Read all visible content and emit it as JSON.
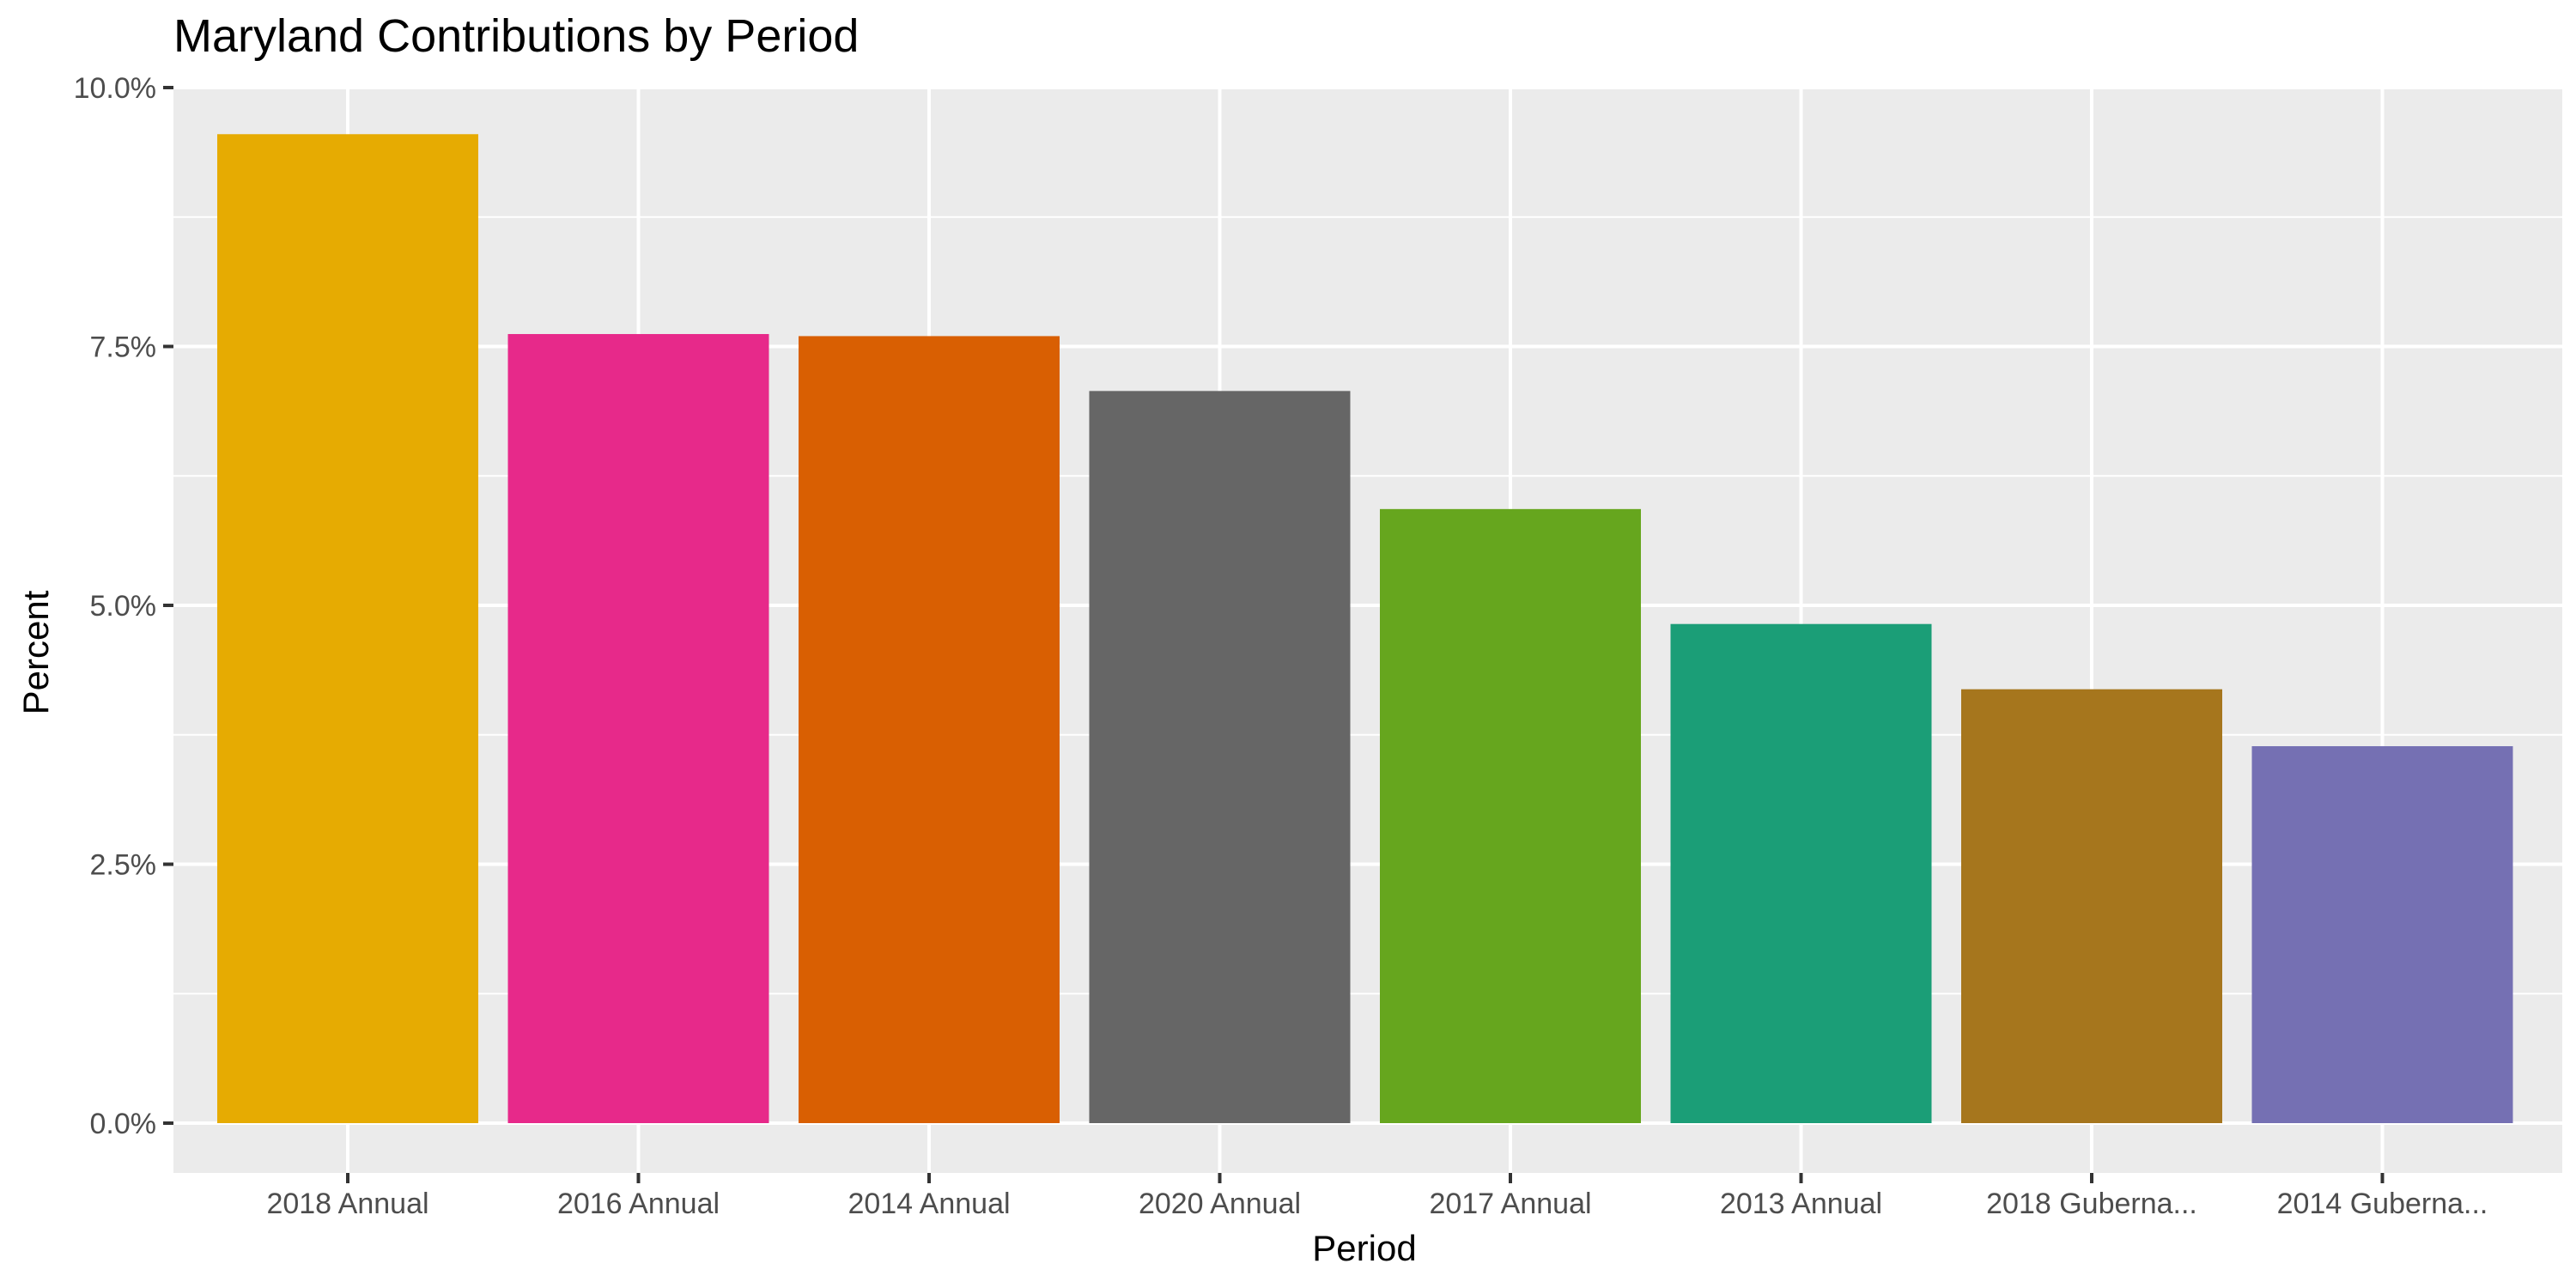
{
  "chart_data": {
    "type": "bar",
    "title": "Maryland Contributions by Period",
    "xlabel": "Period",
    "ylabel": "Percent",
    "categories": [
      "2018 Annual",
      "2016 Annual",
      "2014 Annual",
      "2020 Annual",
      "2017 Annual",
      "2013 Annual",
      "2018 Guberna...",
      "2014 Guberna..."
    ],
    "values": [
      9.55,
      7.62,
      7.6,
      7.07,
      5.93,
      4.82,
      4.19,
      3.64
    ],
    "colors": [
      "#E6AB02",
      "#E7298A",
      "#D95F02",
      "#666666",
      "#66A61E",
      "#1B9E77",
      "#A6761D",
      "#7570B3"
    ],
    "ylim": [
      0,
      10
    ],
    "yticks": [
      0,
      2.5,
      5,
      7.5,
      10
    ],
    "ytick_labels": [
      "0.0%",
      "2.5%",
      "5.0%",
      "7.5%",
      "10.0%"
    ],
    "grid": true,
    "legend": "none",
    "panel_background": "#EBEBEB"
  }
}
